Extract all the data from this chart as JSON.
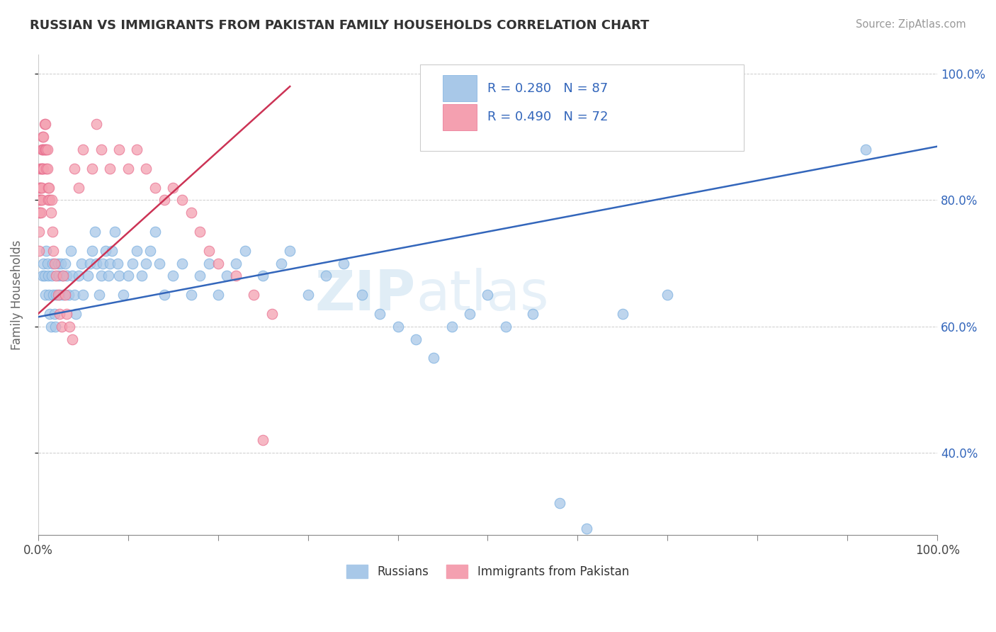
{
  "title": "RUSSIAN VS IMMIGRANTS FROM PAKISTAN FAMILY HOUSEHOLDS CORRELATION CHART",
  "source_text": "Source: ZipAtlas.com",
  "ylabel": "Family Households",
  "xlim": [
    0.0,
    1.0
  ],
  "ylim": [
    0.27,
    1.03
  ],
  "yticks": [
    0.4,
    0.6,
    0.8,
    1.0
  ],
  "ytick_labels": [
    "40.0%",
    "60.0%",
    "80.0%",
    "100.0%"
  ],
  "legend_labels": [
    "Russians",
    "Immigrants from Pakistan"
  ],
  "blue_color": "#a8c8e8",
  "pink_color": "#f4a0b0",
  "blue_edge_color": "#7aafe0",
  "pink_edge_color": "#e87090",
  "blue_line_color": "#3366bb",
  "pink_line_color": "#cc3355",
  "watermark_zip": "ZIP",
  "watermark_atlas": "atlas",
  "title_color": "#333333",
  "legend_r_color": "#3366bb",
  "legend_n_color": "#3366bb",
  "blue_scatter_x": [
    0.005,
    0.006,
    0.007,
    0.008,
    0.009,
    0.01,
    0.011,
    0.012,
    0.013,
    0.014,
    0.015,
    0.016,
    0.017,
    0.018,
    0.019,
    0.02,
    0.022,
    0.023,
    0.024,
    0.025,
    0.027,
    0.028,
    0.03,
    0.032,
    0.034,
    0.036,
    0.038,
    0.04,
    0.042,
    0.045,
    0.048,
    0.05,
    0.055,
    0.058,
    0.06,
    0.063,
    0.065,
    0.068,
    0.07,
    0.072,
    0.075,
    0.078,
    0.08,
    0.082,
    0.085,
    0.088,
    0.09,
    0.095,
    0.1,
    0.105,
    0.11,
    0.115,
    0.12,
    0.125,
    0.13,
    0.135,
    0.14,
    0.15,
    0.16,
    0.17,
    0.18,
    0.19,
    0.2,
    0.21,
    0.22,
    0.23,
    0.25,
    0.27,
    0.28,
    0.3,
    0.32,
    0.34,
    0.36,
    0.38,
    0.4,
    0.42,
    0.44,
    0.46,
    0.48,
    0.5,
    0.52,
    0.55,
    0.58,
    0.61,
    0.65,
    0.7,
    0.92
  ],
  "blue_scatter_y": [
    0.68,
    0.7,
    0.68,
    0.65,
    0.72,
    0.7,
    0.68,
    0.65,
    0.62,
    0.6,
    0.68,
    0.7,
    0.65,
    0.62,
    0.6,
    0.65,
    0.7,
    0.68,
    0.65,
    0.7,
    0.68,
    0.65,
    0.7,
    0.68,
    0.65,
    0.72,
    0.68,
    0.65,
    0.62,
    0.68,
    0.7,
    0.65,
    0.68,
    0.7,
    0.72,
    0.75,
    0.7,
    0.65,
    0.68,
    0.7,
    0.72,
    0.68,
    0.7,
    0.72,
    0.75,
    0.7,
    0.68,
    0.65,
    0.68,
    0.7,
    0.72,
    0.68,
    0.7,
    0.72,
    0.75,
    0.7,
    0.65,
    0.68,
    0.7,
    0.65,
    0.68,
    0.7,
    0.65,
    0.68,
    0.7,
    0.72,
    0.68,
    0.7,
    0.72,
    0.65,
    0.68,
    0.7,
    0.65,
    0.62,
    0.6,
    0.58,
    0.55,
    0.6,
    0.62,
    0.65,
    0.6,
    0.62,
    0.32,
    0.28,
    0.62,
    0.65,
    0.88
  ],
  "pink_scatter_x": [
    0.001,
    0.001,
    0.001,
    0.001,
    0.002,
    0.002,
    0.002,
    0.002,
    0.002,
    0.003,
    0.003,
    0.003,
    0.003,
    0.004,
    0.004,
    0.004,
    0.004,
    0.005,
    0.005,
    0.005,
    0.006,
    0.006,
    0.006,
    0.007,
    0.007,
    0.008,
    0.008,
    0.009,
    0.009,
    0.01,
    0.01,
    0.011,
    0.011,
    0.012,
    0.013,
    0.014,
    0.015,
    0.016,
    0.017,
    0.018,
    0.02,
    0.022,
    0.024,
    0.026,
    0.028,
    0.03,
    0.032,
    0.035,
    0.038,
    0.04,
    0.045,
    0.05,
    0.06,
    0.065,
    0.07,
    0.08,
    0.09,
    0.1,
    0.11,
    0.12,
    0.13,
    0.14,
    0.15,
    0.16,
    0.17,
    0.18,
    0.19,
    0.2,
    0.22,
    0.24,
    0.25,
    0.26
  ],
  "pink_scatter_y": [
    0.72,
    0.75,
    0.78,
    0.8,
    0.82,
    0.8,
    0.78,
    0.82,
    0.85,
    0.85,
    0.82,
    0.8,
    0.78,
    0.88,
    0.85,
    0.82,
    0.8,
    0.9,
    0.88,
    0.85,
    0.9,
    0.88,
    0.85,
    0.92,
    0.88,
    0.92,
    0.88,
    0.88,
    0.85,
    0.88,
    0.85,
    0.82,
    0.8,
    0.82,
    0.8,
    0.78,
    0.8,
    0.75,
    0.72,
    0.7,
    0.68,
    0.65,
    0.62,
    0.6,
    0.68,
    0.65,
    0.62,
    0.6,
    0.58,
    0.85,
    0.82,
    0.88,
    0.85,
    0.92,
    0.88,
    0.85,
    0.88,
    0.85,
    0.88,
    0.85,
    0.82,
    0.8,
    0.82,
    0.8,
    0.78,
    0.75,
    0.72,
    0.7,
    0.68,
    0.65,
    0.42,
    0.62
  ],
  "blue_trend_x": [
    0.0,
    1.0
  ],
  "blue_trend_y": [
    0.615,
    0.885
  ],
  "pink_trend_x": [
    0.0,
    0.28
  ],
  "pink_trend_y": [
    0.62,
    0.98
  ]
}
